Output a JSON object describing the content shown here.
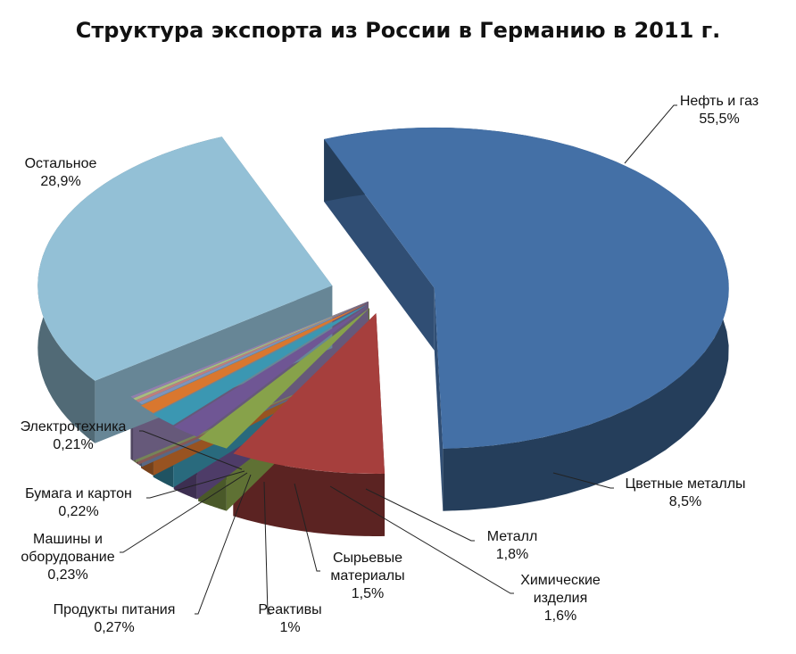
{
  "chart_data": {
    "type": "pie",
    "title": "Структура экспорта из России в Германию в 2011 г.",
    "three_d": true,
    "exploded": true,
    "slices": [
      {
        "name": "Нефть и газ",
        "value": 55.5,
        "value_label": "55,5%",
        "color": "#4470a6"
      },
      {
        "name": "Цветные металлы",
        "value": 8.5,
        "value_label": "8,5%",
        "color": "#a63f3d"
      },
      {
        "name": "Металл",
        "value": 1.8,
        "value_label": "1,8%",
        "color": "#87a24a"
      },
      {
        "name": "Химические изделия",
        "value": 1.6,
        "value_label": "1,6%",
        "color": "#6f5694"
      },
      {
        "name": "Сырьевые материалы",
        "value": 1.5,
        "value_label": "1,5%",
        "color": "#3b97b2"
      },
      {
        "name": "Реактивы",
        "value": 1,
        "value_label": "1%",
        "color": "#d9772f"
      },
      {
        "name": "Продукты питания",
        "value": 0.27,
        "value_label": "0,27%",
        "color": "#7d94bd"
      },
      {
        "name": "Машины и оборудование",
        "value": 0.23,
        "value_label": "0,23%",
        "color": "#c07d7b"
      },
      {
        "name": "Бумага и картон",
        "value": 0.22,
        "value_label": "0,22%",
        "color": "#a9bd7e"
      },
      {
        "name": "Электротехника",
        "value": 0.21,
        "value_label": "0,21%",
        "color": "#927fae"
      },
      {
        "name": "Остальное",
        "value": 28.9,
        "value_label": "28,9%",
        "color": "#93c0d6"
      }
    ]
  }
}
